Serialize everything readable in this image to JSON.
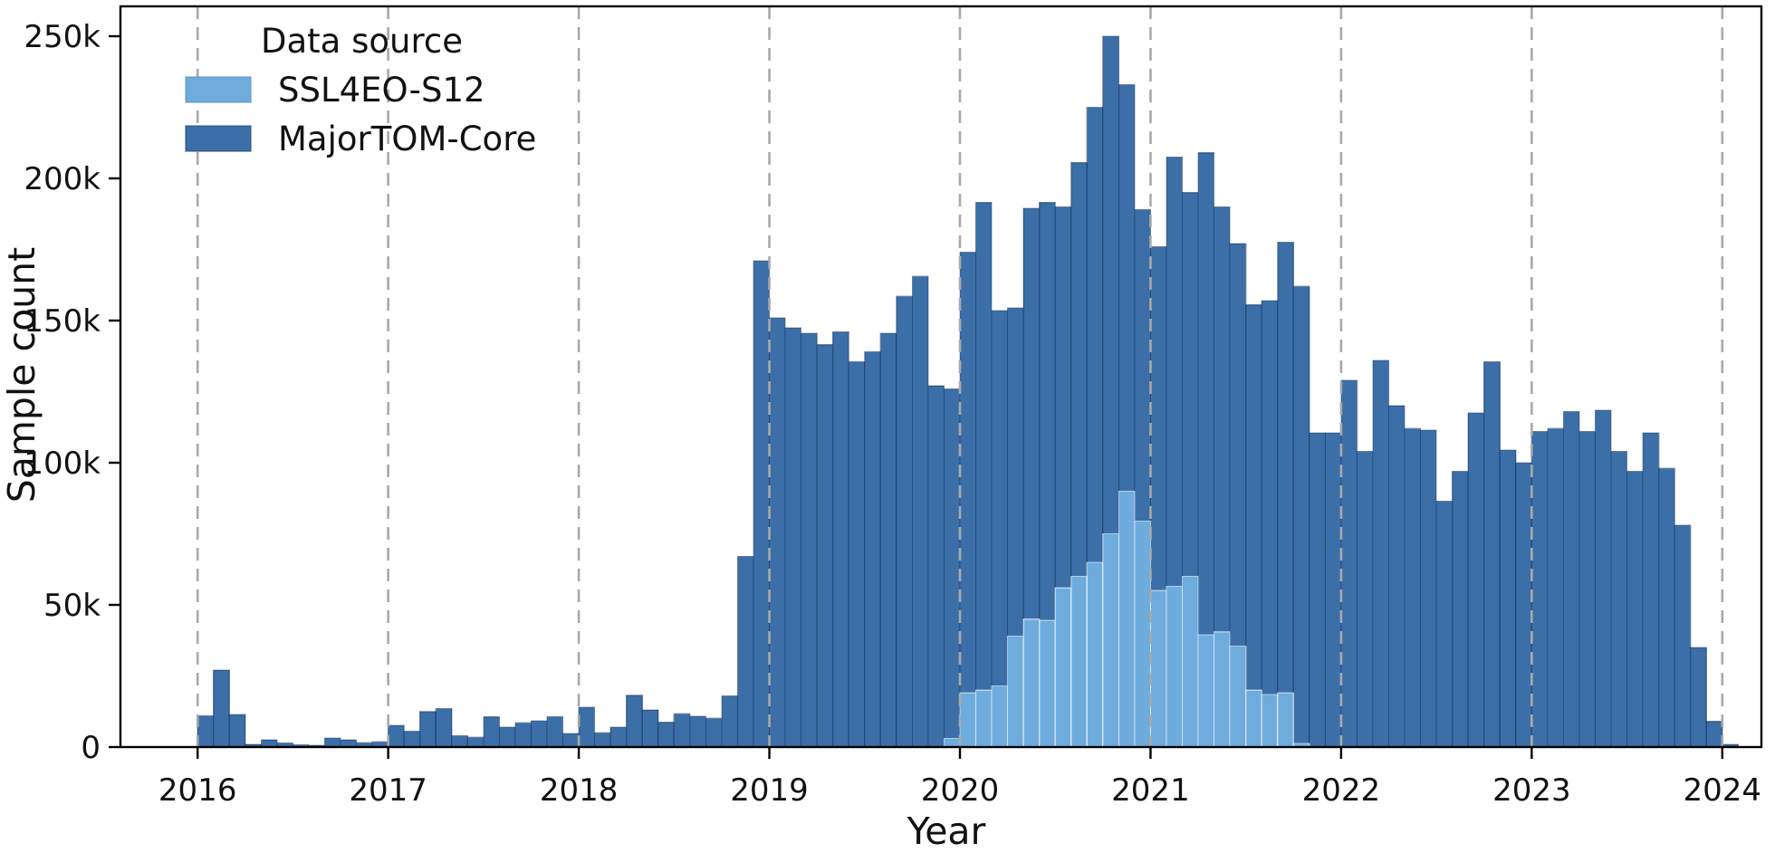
{
  "chart_data": {
    "type": "bar",
    "subtype": "monthly-histogram-overlay",
    "title": "",
    "xlabel": "Year",
    "ylabel": "Sample count",
    "value_unit": "thousands of samples",
    "bin_width": "1 month",
    "x_start": "2016-01",
    "x_end": "2024-01",
    "ylim_thousands": [
      0,
      260
    ],
    "grid": {
      "vertical_dashed_yearlines": true,
      "horizontal": false
    },
    "xaxis": {
      "ticks": [
        "2016",
        "2017",
        "2018",
        "2019",
        "2020",
        "2021",
        "2022",
        "2023",
        "2024"
      ]
    },
    "yaxis": {
      "ticks": [
        {
          "value": 0,
          "label": "0"
        },
        {
          "value": 50,
          "label": "50k"
        },
        {
          "value": 100,
          "label": "100k"
        },
        {
          "value": 150,
          "label": "150k"
        },
        {
          "value": 200,
          "label": "200k"
        },
        {
          "value": 250,
          "label": "250k"
        }
      ]
    },
    "legend": {
      "title": "Data source",
      "position": "upper-left",
      "entries": [
        {
          "label": "SSL4EO-S12",
          "color": "#6eacde"
        },
        {
          "label": "MajorTOM-Core",
          "color": "#3c6fa8"
        }
      ]
    },
    "series": [
      {
        "name": "MajorTOM-Core",
        "color": "#3c6fa8",
        "edge_color": "rgba(20,52,94,0.45)",
        "values_thousands": [
          11,
          27,
          11.5,
          0.9,
          2.5,
          1.4,
          0.8,
          0.6,
          3.2,
          2.5,
          1.5,
          1.8,
          7.6,
          5.6,
          12.5,
          13.5,
          4,
          3.4,
          10.6,
          7,
          8.5,
          9.2,
          10.7,
          4.8,
          14,
          5,
          7,
          18.2,
          13,
          8.7,
          11.7,
          10.8,
          10.1,
          18,
          67,
          171,
          151,
          147.5,
          145.5,
          141.5,
          146,
          135.5,
          139,
          145.5,
          158.5,
          165.5,
          127,
          126,
          174,
          191.5,
          153.5,
          154.5,
          189.5,
          191.5,
          190,
          205.5,
          225,
          250,
          233,
          189,
          176,
          207.5,
          195,
          209,
          190,
          177,
          155.5,
          157,
          177.5,
          162,
          110.5,
          110.5,
          129,
          104,
          136,
          120,
          112,
          111.5,
          86.5,
          97,
          117.5,
          135.5,
          104.5,
          100,
          111,
          112,
          118,
          111,
          118.5,
          104,
          97,
          110.5,
          98,
          78,
          35,
          9,
          1
        ]
      },
      {
        "name": "SSL4EO-S12",
        "color": "#6eacde",
        "edge_color": "rgba(255,255,255,0.55)",
        "values_thousands": [
          0,
          0,
          0,
          0,
          0,
          0,
          0,
          0,
          0,
          0,
          0,
          0,
          0,
          0,
          0,
          0,
          0,
          0,
          0,
          0,
          0,
          0,
          0,
          0,
          0,
          0,
          0,
          0,
          0,
          0,
          0,
          0,
          0,
          0,
          0,
          0,
          0,
          0,
          0,
          0,
          0,
          0,
          0,
          0,
          0,
          0,
          0,
          3,
          19,
          20,
          21.5,
          39,
          45,
          44.5,
          56,
          60,
          65,
          75,
          90,
          79.5,
          55,
          56.5,
          60,
          39.5,
          40.5,
          35.5,
          20,
          18.5,
          19,
          1.3,
          0,
          0,
          0,
          0,
          0,
          0,
          0,
          0,
          0,
          0,
          0,
          0,
          0,
          0,
          0,
          0,
          0,
          0,
          0,
          0,
          0,
          0,
          0,
          0,
          0,
          0,
          0
        ]
      }
    ],
    "colors": {
      "gridline": "#a9a9a9",
      "axis": "#000000",
      "text": "#111111",
      "background": "#ffffff"
    }
  }
}
